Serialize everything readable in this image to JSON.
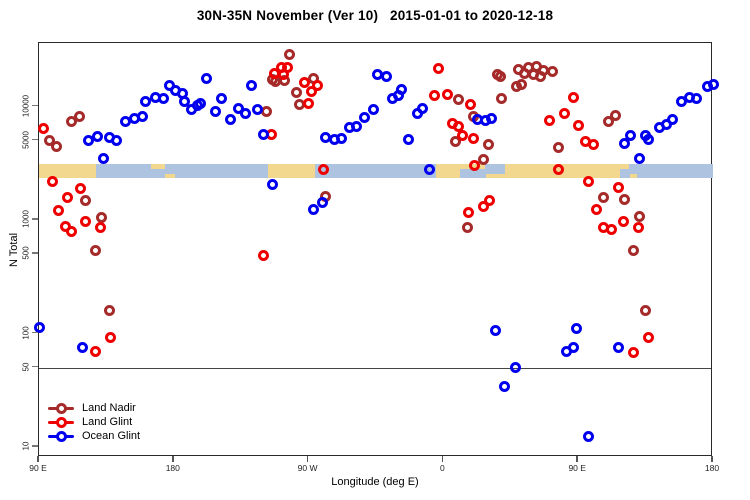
{
  "chart_data": {
    "type": "scatter",
    "title": "30N-35N November (Ver 10)   2015-01-01 to 2020-12-18",
    "xlabel": "Longitude (deg E)",
    "ylabel": "N Total",
    "x_axis": {
      "min": 90,
      "max": 540,
      "ticks": [
        {
          "value": 90,
          "label": "90 E"
        },
        {
          "value": 180,
          "label": "180"
        },
        {
          "value": 270,
          "label": "90 W"
        },
        {
          "value": 360,
          "label": "0"
        },
        {
          "value": 450,
          "label": "90 E"
        },
        {
          "value": 540,
          "label": "180"
        }
      ]
    },
    "y_axis": {
      "scale": "log",
      "ticks": [
        {
          "value": 10000,
          "label": "10000"
        },
        {
          "value": 5000,
          "label": "5000"
        },
        {
          "value": 1000,
          "label": "1000"
        },
        {
          "value": 500,
          "label": "500"
        },
        {
          "value": 100,
          "label": "100"
        },
        {
          "value": 50,
          "label": "50"
        },
        {
          "value": 10,
          "label": "10"
        }
      ]
    },
    "reference_line": {
      "y_value": 50,
      "color": "#444444"
    },
    "land_ocean_band": {
      "y_top_value": 3100,
      "y_bottom_value": 2350,
      "land_color": "#F2D78E",
      "ocean_color": "#AEC3DF",
      "segments": [
        {
          "from": 90,
          "to": 128,
          "type": "land"
        },
        {
          "from": 128,
          "to": 165,
          "type": "ocean"
        },
        {
          "from": 165,
          "to": 181,
          "type": "mixed"
        },
        {
          "from": 181,
          "to": 243,
          "type": "ocean"
        },
        {
          "from": 243,
          "to": 274,
          "type": "land"
        },
        {
          "from": 274,
          "to": 355,
          "type": "ocean"
        },
        {
          "from": 355,
          "to": 371,
          "type": "land"
        },
        {
          "from": 371,
          "to": 401,
          "type": "mixed"
        },
        {
          "from": 401,
          "to": 478,
          "type": "land"
        },
        {
          "from": 478,
          "to": 489,
          "type": "mixed"
        },
        {
          "from": 489,
          "to": 540,
          "type": "ocean"
        }
      ]
    },
    "legend": {
      "position": "bottom-left",
      "items": [
        {
          "label": "Land Nadir",
          "color": "#A52A2A"
        },
        {
          "label": "Land Glint",
          "color": "#EE0000"
        },
        {
          "label": "Ocean Glint",
          "color": "#0000EE"
        }
      ]
    },
    "series": [
      {
        "name": "Land Nadir",
        "color": "#A52A2A",
        "points": [
          [
            97,
            5000
          ],
          [
            102,
            4400
          ],
          [
            112,
            7400
          ],
          [
            117,
            8200
          ],
          [
            121,
            1500
          ],
          [
            132,
            1050
          ],
          [
            128,
            540
          ],
          [
            137,
            158
          ],
          [
            242,
            9000
          ],
          [
            246,
            17300
          ],
          [
            248,
            16600
          ],
          [
            254,
            17000
          ],
          [
            257,
            28800
          ],
          [
            262,
            13300
          ],
          [
            264,
            10400
          ],
          [
            273,
            17500
          ],
          [
            281,
            1610
          ],
          [
            368,
            4900
          ],
          [
            370,
            11500
          ],
          [
            376,
            860
          ],
          [
            380,
            8200
          ],
          [
            387,
            3380
          ],
          [
            390,
            4600
          ],
          [
            396,
            19100
          ],
          [
            398,
            18400
          ],
          [
            399,
            11800
          ],
          [
            409,
            15000
          ],
          [
            410,
            21200
          ],
          [
            412,
            15600
          ],
          [
            414,
            19600
          ],
          [
            417,
            22100
          ],
          [
            420,
            19100
          ],
          [
            422,
            22500
          ],
          [
            425,
            18400
          ],
          [
            427,
            20800
          ],
          [
            433,
            20400
          ],
          [
            437,
            4350
          ],
          [
            467,
            1570
          ],
          [
            470,
            7400
          ],
          [
            475,
            8300
          ],
          [
            481,
            1510
          ],
          [
            487,
            540
          ],
          [
            491,
            1070
          ],
          [
            495,
            158
          ]
        ]
      },
      {
        "name": "Land Glint",
        "color": "#EE0000",
        "points": [
          [
            93,
            6400
          ],
          [
            99,
            2180
          ],
          [
            103,
            1210
          ],
          [
            108,
            870
          ],
          [
            109,
            1570
          ],
          [
            112,
            790
          ],
          [
            118,
            1890
          ],
          [
            121,
            970
          ],
          [
            131,
            860
          ],
          [
            128,
            69
          ],
          [
            138,
            92
          ],
          [
            240,
            490
          ],
          [
            245,
            5700
          ],
          [
            247,
            19600
          ],
          [
            252,
            22100
          ],
          [
            253,
            19100
          ],
          [
            256,
            22100
          ],
          [
            267,
            16300
          ],
          [
            270,
            10600
          ],
          [
            272,
            13600
          ],
          [
            276,
            15300
          ],
          [
            280,
            2780
          ],
          [
            354,
            12500
          ],
          [
            357,
            21600
          ],
          [
            363,
            12800
          ],
          [
            366,
            7080
          ],
          [
            370,
            6670
          ],
          [
            373,
            5550
          ],
          [
            378,
            10400
          ],
          [
            380,
            5220
          ],
          [
            381,
            3030
          ],
          [
            377,
            1160
          ],
          [
            387,
            1310
          ],
          [
            391,
            1480
          ],
          [
            431,
            7530
          ],
          [
            437,
            2780
          ],
          [
            441,
            8670
          ],
          [
            447,
            12000
          ],
          [
            450,
            6790
          ],
          [
            455,
            4910
          ],
          [
            460,
            4620
          ],
          [
            457,
            2180
          ],
          [
            462,
            1230
          ],
          [
            467,
            860
          ],
          [
            472,
            820
          ],
          [
            477,
            1930
          ],
          [
            480,
            970
          ],
          [
            490,
            860
          ],
          [
            487,
            68
          ],
          [
            497,
            93
          ]
        ]
      },
      {
        "name": "Ocean Glint",
        "color": "#0000EE",
        "points": [
          [
            90,
            112
          ],
          [
            119,
            76
          ],
          [
            123,
            5000
          ],
          [
            129,
            5430
          ],
          [
            133,
            3480
          ],
          [
            137,
            5330
          ],
          [
            142,
            5000
          ],
          [
            148,
            7400
          ],
          [
            154,
            7800
          ],
          [
            159,
            8200
          ],
          [
            161,
            11100
          ],
          [
            168,
            12000
          ],
          [
            173,
            11800
          ],
          [
            177,
            15300
          ],
          [
            181,
            13800
          ],
          [
            186,
            13000
          ],
          [
            187,
            11100
          ],
          [
            192,
            9400
          ],
          [
            196,
            10200
          ],
          [
            198,
            10600
          ],
          [
            202,
            17500
          ],
          [
            208,
            9000
          ],
          [
            212,
            11800
          ],
          [
            218,
            7670
          ],
          [
            223,
            9600
          ],
          [
            228,
            8670
          ],
          [
            232,
            15300
          ],
          [
            236,
            9400
          ],
          [
            240,
            5660
          ],
          [
            246,
            2050
          ],
          [
            273,
            1230
          ],
          [
            279,
            1420
          ],
          [
            281,
            5330
          ],
          [
            287,
            5120
          ],
          [
            292,
            5220
          ],
          [
            297,
            6530
          ],
          [
            302,
            6670
          ],
          [
            307,
            8000
          ],
          [
            313,
            9400
          ],
          [
            316,
            19100
          ],
          [
            322,
            18400
          ],
          [
            326,
            11800
          ],
          [
            330,
            12500
          ],
          [
            332,
            14100
          ],
          [
            337,
            5120
          ],
          [
            343,
            8670
          ],
          [
            346,
            9600
          ],
          [
            351,
            2780
          ],
          [
            383,
            7670
          ],
          [
            388,
            7530
          ],
          [
            392,
            7830
          ],
          [
            395,
            106
          ],
          [
            401,
            34
          ],
          [
            408,
            50
          ],
          [
            442,
            69
          ],
          [
            447,
            76
          ],
          [
            449,
            110
          ],
          [
            457,
            12.5
          ],
          [
            477,
            76
          ],
          [
            481,
            4720
          ],
          [
            485,
            5550
          ],
          [
            491,
            3480
          ],
          [
            495,
            5550
          ],
          [
            497,
            5120
          ],
          [
            504,
            6530
          ],
          [
            509,
            6930
          ],
          [
            513,
            7670
          ],
          [
            519,
            11100
          ],
          [
            524,
            12000
          ],
          [
            529,
            11800
          ],
          [
            536,
            15000
          ],
          [
            540,
            15600
          ]
        ]
      }
    ]
  }
}
